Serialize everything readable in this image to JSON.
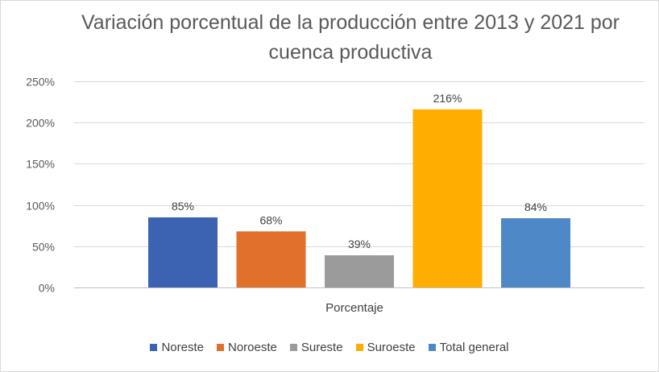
{
  "chart_data": {
    "type": "bar",
    "title": "Variación porcentual de la producción entre 2013 y 2021 por cuenca productiva",
    "xlabel": "Porcentaje",
    "ylabel": "",
    "categories": [
      "Porcentaje"
    ],
    "series": [
      {
        "name": "Noreste",
        "values": [
          85
        ],
        "color": "#3b63b1",
        "label": "85%"
      },
      {
        "name": "Noroeste",
        "values": [
          68
        ],
        "color": "#e0702c",
        "label": "68%"
      },
      {
        "name": "Sureste",
        "values": [
          39
        ],
        "color": "#9b9b9b",
        "label": "39%"
      },
      {
        "name": "Suroeste",
        "values": [
          216
        ],
        "color": "#ffad00",
        "label": "216%"
      },
      {
        "name": "Total general",
        "values": [
          84
        ],
        "color": "#4f88c6",
        "label": "84%"
      }
    ],
    "ylim": [
      0,
      250
    ],
    "yticks": [
      0,
      50,
      100,
      150,
      200,
      250
    ],
    "ytick_labels": [
      "0%",
      "50%",
      "100%",
      "150%",
      "200%",
      "250%"
    ],
    "grid": true,
    "legend_position": "bottom",
    "gridline_color": "#d9d9d9"
  }
}
